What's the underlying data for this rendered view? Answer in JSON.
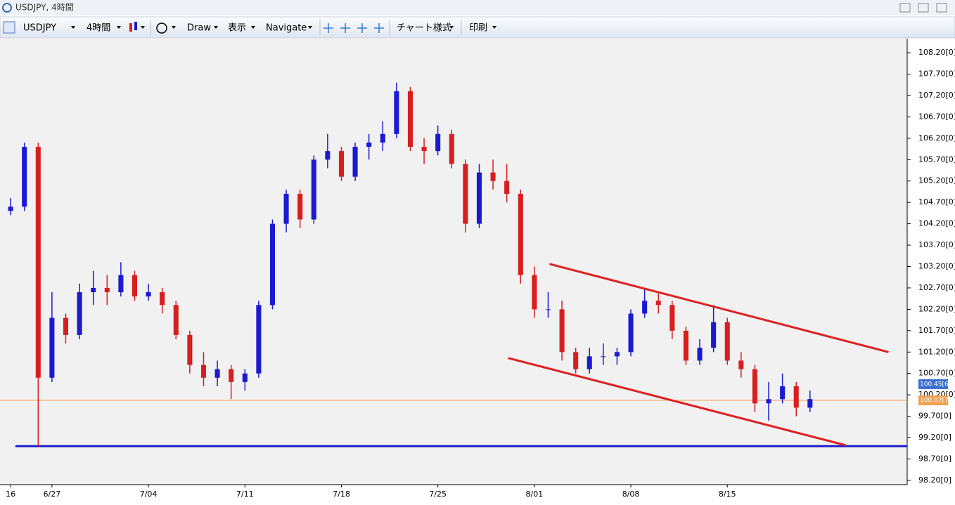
{
  "window": {
    "title": "USDJPY, 4時間"
  },
  "toolbar": {
    "symbol": "USDJPY",
    "timeframe": "4時間",
    "menus": [
      "Draw",
      "表示",
      "Navigate",
      "チャート様式",
      "印刷"
    ]
  },
  "chart_data": {
    "type": "candlestick",
    "categories": [
      "16",
      null,
      null,
      "6/27",
      null,
      null,
      null,
      null,
      null,
      null,
      "7/04",
      null,
      null,
      null,
      null,
      null,
      null,
      "7/11",
      null,
      null,
      null,
      null,
      null,
      null,
      "7/18",
      null,
      null,
      null,
      null,
      null,
      null,
      "7/25",
      null,
      null,
      null,
      null,
      null,
      null,
      "8/01",
      null,
      null,
      null,
      null,
      null,
      null,
      "8/08",
      null,
      null,
      null,
      null,
      null,
      null,
      "8/15",
      null,
      null,
      null,
      null,
      null,
      null
    ],
    "open": [
      104.5,
      104.6,
      106.0,
      100.6,
      102.0,
      101.6,
      102.6,
      102.7,
      102.6,
      103.0,
      102.5,
      102.6,
      102.3,
      101.6,
      100.9,
      100.6,
      100.8,
      100.5,
      100.7,
      102.3,
      104.2,
      104.9,
      104.3,
      105.7,
      105.9,
      105.3,
      106.0,
      106.1,
      106.3,
      107.3,
      106.0,
      105.9,
      106.3,
      105.6,
      104.2,
      105.4,
      105.2,
      104.9,
      103.0,
      102.2,
      102.2,
      101.2,
      100.8,
      101.1,
      101.1,
      101.2,
      102.1,
      102.4,
      102.3,
      101.7,
      101.0,
      101.3,
      101.9,
      101.0,
      100.8,
      100.0,
      100.1,
      100.4,
      99.9
    ],
    "high": [
      104.8,
      106.1,
      106.1,
      102.6,
      102.1,
      102.8,
      103.1,
      103.0,
      103.3,
      103.1,
      102.8,
      102.7,
      102.4,
      101.7,
      101.2,
      101.0,
      100.9,
      100.8,
      102.4,
      104.3,
      105.0,
      105.0,
      105.8,
      106.3,
      106.0,
      106.1,
      106.3,
      106.6,
      107.5,
      107.4,
      106.2,
      106.5,
      106.4,
      105.7,
      105.6,
      105.7,
      105.6,
      105.0,
      103.2,
      102.6,
      102.4,
      101.3,
      101.3,
      101.4,
      101.3,
      102.2,
      102.7,
      102.6,
      102.4,
      101.8,
      101.5,
      102.3,
      102.0,
      101.2,
      100.9,
      100.5,
      100.7,
      100.5,
      100.3
    ],
    "low": [
      104.4,
      104.5,
      99.0,
      100.5,
      101.4,
      101.5,
      102.3,
      102.3,
      102.5,
      102.4,
      102.4,
      102.1,
      101.5,
      100.7,
      100.4,
      100.4,
      100.1,
      100.3,
      100.6,
      102.2,
      104.0,
      104.1,
      104.2,
      105.5,
      105.2,
      105.2,
      105.7,
      105.9,
      106.2,
      105.9,
      105.6,
      105.8,
      105.5,
      104.0,
      104.1,
      105.0,
      104.7,
      102.8,
      102.0,
      102.0,
      101.0,
      100.7,
      100.7,
      100.9,
      100.9,
      101.1,
      102.0,
      102.1,
      101.5,
      100.9,
      100.9,
      101.2,
      100.9,
      100.6,
      99.8,
      99.6,
      100.0,
      99.7,
      99.8
    ],
    "close": [
      104.6,
      106.0,
      100.6,
      102.0,
      101.6,
      102.6,
      102.7,
      102.6,
      103.0,
      102.5,
      102.6,
      102.3,
      101.6,
      100.9,
      100.6,
      100.8,
      100.5,
      100.7,
      102.3,
      104.2,
      104.9,
      104.3,
      105.7,
      105.9,
      105.3,
      106.0,
      106.1,
      106.3,
      107.3,
      106.0,
      105.9,
      106.3,
      105.6,
      104.2,
      105.4,
      105.2,
      104.9,
      103.0,
      102.2,
      102.2,
      101.2,
      100.8,
      101.1,
      101.1,
      101.2,
      102.1,
      102.4,
      102.3,
      101.7,
      101.0,
      101.3,
      101.9,
      101.0,
      100.8,
      100.0,
      100.1,
      100.4,
      99.9,
      100.1
    ],
    "up_color": "#1a1ad0",
    "down_color": "#d81e1e",
    "xlim": [
      -0.77,
      65.05
    ],
    "ylim": [
      98.1,
      108.53
    ],
    "yticks": [
      {
        "value": 98.2,
        "label": "98.20[0]"
      },
      {
        "value": 98.7,
        "label": "98.70[0]"
      },
      {
        "value": 99.2,
        "label": "99.20[0]"
      },
      {
        "value": 99.7,
        "label": "99.70[0]"
      },
      {
        "value": 100.2,
        "label": "100.20[0]"
      },
      {
        "value": 100.7,
        "label": "100.70[0]"
      },
      {
        "value": 101.2,
        "label": "101.20[0]"
      },
      {
        "value": 101.7,
        "label": "101.70[0]"
      },
      {
        "value": 102.2,
        "label": "102.20[0]"
      },
      {
        "value": 102.7,
        "label": "102.70[0]"
      },
      {
        "value": 103.2,
        "label": "103.20[0]"
      },
      {
        "value": 103.7,
        "label": "103.70[0]"
      },
      {
        "value": 104.2,
        "label": "104.20[0]"
      },
      {
        "value": 104.7,
        "label": "104.70[0]"
      },
      {
        "value": 105.2,
        "label": "105.20[0]"
      },
      {
        "value": 105.7,
        "label": "105.70[0]"
      },
      {
        "value": 106.2,
        "label": "106.20[0]"
      },
      {
        "value": 106.7,
        "label": "106.70[0]"
      },
      {
        "value": 107.2,
        "label": "107.20[0]"
      },
      {
        "value": 107.7,
        "label": "107.70[0]"
      },
      {
        "value": 108.2,
        "label": "108.20[0]"
      }
    ],
    "hlines": [
      {
        "value": 100.07,
        "color": "#f0a050"
      },
      {
        "value": 99.0,
        "color": "#1c1cc8"
      }
    ],
    "price_labels": [
      {
        "value": 100.45,
        "label": "100.45[6]",
        "color": "#3a6fd0"
      },
      {
        "value": 100.07,
        "label": "100.07[7]",
        "color": "#f0a050"
      }
    ],
    "trendlines": [
      {
        "x": [
          39.1,
          63.7
        ],
        "y": [
          103.26,
          101.2
        ],
        "color": "#e02020"
      },
      {
        "x": [
          36.1,
          60.6
        ],
        "y": [
          101.06,
          99.02
        ],
        "color": "#e02020"
      }
    ]
  }
}
